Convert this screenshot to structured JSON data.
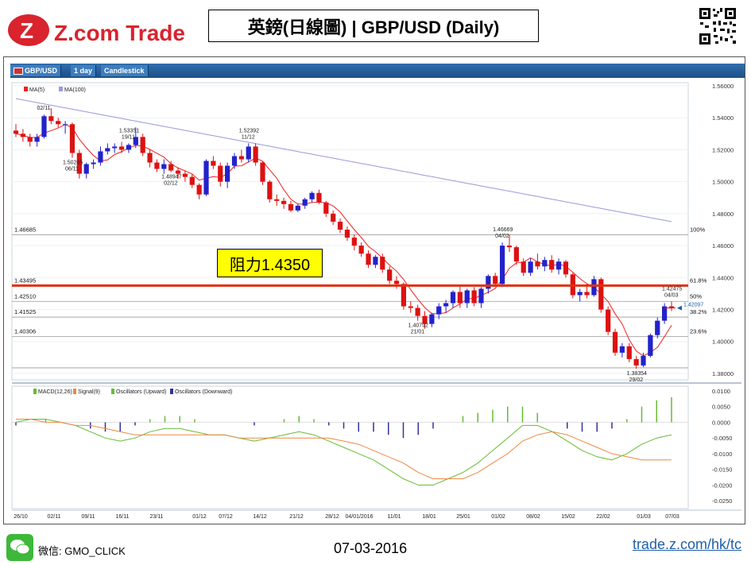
{
  "header": {
    "logo_text": "Z.com Trade",
    "title": "英鎊(日線圖) | GBP/USD  (Daily)"
  },
  "toolbar": {
    "symbol": "GBP/USD",
    "interval": "1 day",
    "chart_type": "Candlestick"
  },
  "resistance_label": "阻力1.4350",
  "footer": {
    "wechat_label": "微信: GMO_CLICK",
    "date": "07-03-2016",
    "link": "trade.z.com/hk/tc"
  },
  "colors": {
    "up_candle": "#2222cc",
    "down_candle": "#dd1111",
    "ma5": "#ee2222",
    "ma100": "#9999dd",
    "resistance": "#e03010",
    "macd_line": "#66bb33",
    "signal_line": "#ee8844",
    "osc_up": "#66bb33",
    "osc_down": "#333399"
  },
  "chart_data": [
    {
      "type": "candlestick",
      "title": "",
      "legend": [
        "MA(5)",
        "MA(100)"
      ],
      "ylim": [
        1.376,
        1.562
      ],
      "y_ticks": [
        "1.56000",
        "1.54000",
        "1.52000",
        "1.50000",
        "1.48000",
        "1.46000",
        "1.44000",
        "1.42000",
        "1.40000",
        "1.38000"
      ],
      "x_tick_labels": [
        "26/10",
        "02/11",
        "09/11",
        "16/11",
        "23/11",
        "01/12",
        "07/12",
        "14/12",
        "21/12",
        "28/12",
        "04/01/2016",
        "11/01",
        "18/01",
        "25/01",
        "01/02",
        "08/02",
        "15/02",
        "22/02",
        "01/03",
        "07/03"
      ],
      "annotations": [
        {
          "price": "1.53351",
          "date": "19/11"
        },
        {
          "price": "1.50265",
          "date": "06/11"
        },
        {
          "price": "1.48947",
          "date": "02/12"
        },
        {
          "price": "1.52392",
          "date": "11/12"
        },
        {
          "price": "1.46669",
          "date": "04/02"
        },
        {
          "price": "1.40792",
          "date": "21/01"
        },
        {
          "price": "1.38354",
          "date": "29/02"
        },
        {
          "price": "1.42475",
          "date": "04/03"
        },
        {
          "price": "",
          "date": "02/11"
        }
      ],
      "fib_levels": [
        {
          "price": "1.46685",
          "label": "100%"
        },
        {
          "price": "1.43495",
          "label": "61.8%"
        },
        {
          "price": "1.42510",
          "label": "50%"
        },
        {
          "price": "1.41525",
          "label": "38.2%"
        },
        {
          "price": "1.40306",
          "label": "23.6%"
        }
      ],
      "current_price": "1.42097",
      "resistance": 1.435,
      "ohlc": [
        [
          1.532,
          1.536,
          1.528,
          1.53
        ],
        [
          1.53,
          1.533,
          1.525,
          1.528
        ],
        [
          1.528,
          1.53,
          1.522,
          1.525
        ],
        [
          1.525,
          1.53,
          1.522,
          1.528
        ],
        [
          1.528,
          1.542,
          1.527,
          1.541
        ],
        [
          1.541,
          1.546,
          1.536,
          1.538
        ],
        [
          1.538,
          1.54,
          1.534,
          1.536
        ],
        [
          1.536,
          1.538,
          1.53,
          1.536
        ],
        [
          1.536,
          1.537,
          1.515,
          1.518
        ],
        [
          1.518,
          1.52,
          1.502,
          1.505
        ],
        [
          1.505,
          1.512,
          1.502,
          1.511
        ],
        [
          1.511,
          1.514,
          1.508,
          1.512
        ],
        [
          1.512,
          1.522,
          1.51,
          1.519
        ],
        [
          1.519,
          1.524,
          1.517,
          1.521
        ],
        [
          1.521,
          1.524,
          1.518,
          1.522
        ],
        [
          1.522,
          1.525,
          1.518,
          1.52
        ],
        [
          1.52,
          1.524,
          1.518,
          1.523
        ],
        [
          1.523,
          1.534,
          1.521,
          1.528
        ],
        [
          1.528,
          1.53,
          1.516,
          1.518
        ],
        [
          1.518,
          1.52,
          1.509,
          1.512
        ],
        [
          1.512,
          1.514,
          1.506,
          1.508
        ],
        [
          1.508,
          1.514,
          1.505,
          1.511
        ],
        [
          1.511,
          1.513,
          1.506,
          1.507
        ],
        [
          1.507,
          1.509,
          1.502,
          1.505
        ],
        [
          1.505,
          1.507,
          1.5,
          1.503
        ],
        [
          1.503,
          1.505,
          1.496,
          1.498
        ],
        [
          1.498,
          1.499,
          1.489,
          1.492
        ],
        [
          1.492,
          1.514,
          1.491,
          1.513
        ],
        [
          1.513,
          1.516,
          1.508,
          1.51
        ],
        [
          1.51,
          1.512,
          1.497,
          1.5
        ],
        [
          1.5,
          1.512,
          1.496,
          1.51
        ],
        [
          1.51,
          1.518,
          1.508,
          1.516
        ],
        [
          1.516,
          1.52,
          1.512,
          1.514
        ],
        [
          1.514,
          1.524,
          1.512,
          1.522
        ],
        [
          1.522,
          1.524,
          1.51,
          1.512
        ],
        [
          1.512,
          1.513,
          1.498,
          1.5
        ],
        [
          1.5,
          1.501,
          1.487,
          1.489
        ],
        [
          1.489,
          1.492,
          1.485,
          1.488
        ],
        [
          1.488,
          1.49,
          1.483,
          1.486
        ],
        [
          1.486,
          1.488,
          1.481,
          1.482
        ],
        [
          1.482,
          1.486,
          1.481,
          1.485
        ],
        [
          1.485,
          1.49,
          1.483,
          1.489
        ],
        [
          1.489,
          1.494,
          1.487,
          1.493
        ],
        [
          1.493,
          1.495,
          1.486,
          1.487
        ],
        [
          1.487,
          1.488,
          1.478,
          1.48
        ],
        [
          1.48,
          1.482,
          1.473,
          1.475
        ],
        [
          1.475,
          1.477,
          1.468,
          1.47
        ],
        [
          1.47,
          1.472,
          1.463,
          1.465
        ],
        [
          1.465,
          1.467,
          1.457,
          1.46
        ],
        [
          1.46,
          1.462,
          1.453,
          1.455
        ],
        [
          1.455,
          1.457,
          1.446,
          1.448
        ],
        [
          1.448,
          1.454,
          1.446,
          1.453
        ],
        [
          1.453,
          1.455,
          1.443,
          1.445
        ],
        [
          1.445,
          1.447,
          1.436,
          1.438
        ],
        [
          1.438,
          1.441,
          1.433,
          1.436
        ],
        [
          1.436,
          1.437,
          1.42,
          1.422
        ],
        [
          1.422,
          1.425,
          1.418,
          1.421
        ],
        [
          1.421,
          1.423,
          1.413,
          1.416
        ],
        [
          1.416,
          1.419,
          1.408,
          1.411
        ],
        [
          1.411,
          1.418,
          1.409,
          1.417
        ],
        [
          1.417,
          1.424,
          1.414,
          1.422
        ],
        [
          1.422,
          1.426,
          1.418,
          1.424
        ],
        [
          1.424,
          1.432,
          1.421,
          1.431
        ],
        [
          1.431,
          1.435,
          1.421,
          1.424
        ],
        [
          1.424,
          1.433,
          1.421,
          1.432
        ],
        [
          1.432,
          1.434,
          1.422,
          1.424
        ],
        [
          1.424,
          1.434,
          1.421,
          1.433
        ],
        [
          1.433,
          1.442,
          1.43,
          1.441
        ],
        [
          1.441,
          1.443,
          1.434,
          1.436
        ],
        [
          1.436,
          1.462,
          1.434,
          1.46
        ],
        [
          1.46,
          1.467,
          1.456,
          1.459
        ],
        [
          1.459,
          1.46,
          1.448,
          1.45
        ],
        [
          1.45,
          1.452,
          1.441,
          1.443
        ],
        [
          1.443,
          1.452,
          1.441,
          1.45
        ],
        [
          1.45,
          1.455,
          1.445,
          1.447
        ],
        [
          1.447,
          1.453,
          1.444,
          1.451
        ],
        [
          1.451,
          1.454,
          1.443,
          1.445
        ],
        [
          1.445,
          1.452,
          1.442,
          1.45
        ],
        [
          1.45,
          1.451,
          1.44,
          1.442
        ],
        [
          1.442,
          1.443,
          1.427,
          1.429
        ],
        [
          1.429,
          1.433,
          1.425,
          1.431
        ],
        [
          1.431,
          1.436,
          1.427,
          1.429
        ],
        [
          1.429,
          1.441,
          1.428,
          1.439
        ],
        [
          1.439,
          1.44,
          1.418,
          1.42
        ],
        [
          1.42,
          1.422,
          1.404,
          1.406
        ],
        [
          1.406,
          1.408,
          1.391,
          1.393
        ],
        [
          1.393,
          1.399,
          1.39,
          1.397
        ],
        [
          1.397,
          1.399,
          1.387,
          1.389
        ],
        [
          1.389,
          1.391,
          1.383,
          1.385
        ],
        [
          1.385,
          1.393,
          1.384,
          1.391
        ],
        [
          1.391,
          1.405,
          1.39,
          1.404
        ],
        [
          1.404,
          1.415,
          1.402,
          1.413
        ],
        [
          1.413,
          1.424,
          1.411,
          1.422
        ],
        [
          1.422,
          1.425,
          1.419,
          1.421
        ]
      ]
    },
    {
      "type": "line",
      "title": "",
      "legend": [
        "MACD(12,26)",
        "Signal(9)",
        "Oscillators (Upward)",
        "Oscillators (Downward)"
      ],
      "ylim": [
        -0.0275,
        0.0115
      ],
      "y_ticks": [
        "0.0100",
        "0.0050",
        "0.0000",
        "-0.0050",
        "-0.0100",
        "-0.0150",
        "-0.0200",
        "-0.0250"
      ],
      "macd": [
        0.0,
        0.001,
        0.001,
        0.0,
        -0.001,
        -0.003,
        -0.005,
        -0.006,
        -0.005,
        -0.003,
        -0.002,
        -0.002,
        -0.003,
        -0.004,
        -0.004,
        -0.005,
        -0.006,
        -0.005,
        -0.004,
        -0.003,
        -0.004,
        -0.006,
        -0.008,
        -0.01,
        -0.012,
        -0.015,
        -0.018,
        -0.02,
        -0.02,
        -0.018,
        -0.016,
        -0.013,
        -0.009,
        -0.005,
        -0.001,
        -0.001,
        -0.003,
        -0.006,
        -0.009,
        -0.011,
        -0.012,
        -0.01,
        -0.007,
        -0.005,
        -0.004
      ],
      "signal": [
        0.001,
        0.001,
        0.0,
        0.0,
        -0.001,
        -0.001,
        -0.002,
        -0.003,
        -0.004,
        -0.004,
        -0.004,
        -0.004,
        -0.004,
        -0.004,
        -0.004,
        -0.005,
        -0.005,
        -0.005,
        -0.005,
        -0.005,
        -0.005,
        -0.005,
        -0.006,
        -0.007,
        -0.009,
        -0.011,
        -0.013,
        -0.016,
        -0.018,
        -0.018,
        -0.018,
        -0.016,
        -0.013,
        -0.01,
        -0.006,
        -0.004,
        -0.003,
        -0.004,
        -0.006,
        -0.008,
        -0.01,
        -0.011,
        -0.012,
        -0.012,
        -0.012
      ],
      "histogram": [
        -0.001,
        0.0,
        0.001,
        0.0,
        0.0,
        -0.002,
        -0.003,
        -0.003,
        -0.001,
        0.001,
        0.002,
        0.002,
        0.001,
        0.0,
        0.0,
        0.0,
        -0.001,
        0.0,
        0.001,
        0.002,
        0.001,
        -0.001,
        -0.002,
        -0.003,
        -0.003,
        -0.004,
        -0.005,
        -0.004,
        -0.002,
        0.0,
        0.002,
        0.003,
        0.004,
        0.005,
        0.005,
        0.003,
        0.0,
        -0.002,
        -0.003,
        -0.003,
        -0.002,
        0.001,
        0.005,
        0.007,
        0.008
      ]
    }
  ]
}
